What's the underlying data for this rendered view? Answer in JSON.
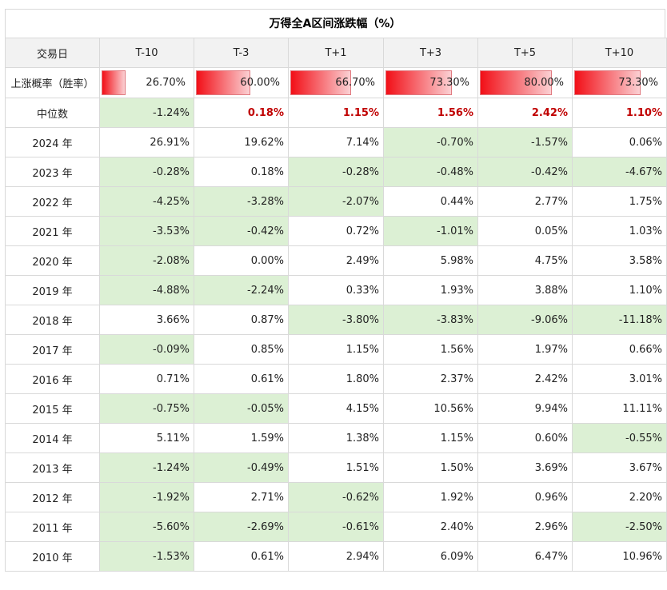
{
  "chart_data": {
    "type": "table",
    "title": "万得全A区间涨跌幅（%）",
    "columns": [
      "交易日",
      "T-10",
      "T-3",
      "T+1",
      "T+3",
      "T+5",
      "T+10"
    ],
    "rows": [
      {
        "label": "上涨概率（胜率）",
        "kind": "bar",
        "values": [
          "26.70%",
          "60.00%",
          "66.70%",
          "73.30%",
          "80.00%",
          "73.30%"
        ],
        "fractions": [
          0.267,
          0.6,
          0.667,
          0.733,
          0.8,
          0.733
        ]
      },
      {
        "label": "中位数",
        "kind": "median",
        "values": [
          "-1.24%",
          "0.18%",
          "1.15%",
          "1.56%",
          "2.42%",
          "1.10%"
        ]
      },
      {
        "label": "2024 年",
        "values": [
          "26.91%",
          "19.62%",
          "7.14%",
          "-0.70%",
          "-1.57%",
          "0.06%"
        ]
      },
      {
        "label": "2023 年",
        "values": [
          "-0.28%",
          "0.18%",
          "-0.28%",
          "-0.48%",
          "-0.42%",
          "-4.67%"
        ]
      },
      {
        "label": "2022 年",
        "values": [
          "-4.25%",
          "-3.28%",
          "-2.07%",
          "0.44%",
          "2.77%",
          "1.75%"
        ]
      },
      {
        "label": "2021 年",
        "values": [
          "-3.53%",
          "-0.42%",
          "0.72%",
          "-1.01%",
          "0.05%",
          "1.03%"
        ]
      },
      {
        "label": "2020 年",
        "values": [
          "-2.08%",
          "0.00%",
          "2.49%",
          "5.98%",
          "4.75%",
          "3.58%"
        ]
      },
      {
        "label": "2019 年",
        "values": [
          "-4.88%",
          "-2.24%",
          "0.33%",
          "1.93%",
          "3.88%",
          "1.10%"
        ]
      },
      {
        "label": "2018 年",
        "values": [
          "3.66%",
          "0.87%",
          "-3.80%",
          "-3.83%",
          "-9.06%",
          "-11.18%"
        ]
      },
      {
        "label": "2017 年",
        "values": [
          "-0.09%",
          "0.85%",
          "1.15%",
          "1.56%",
          "1.97%",
          "0.66%"
        ]
      },
      {
        "label": "2016 年",
        "values": [
          "0.71%",
          "0.61%",
          "1.80%",
          "2.37%",
          "2.42%",
          "3.01%"
        ]
      },
      {
        "label": "2015 年",
        "values": [
          "-0.75%",
          "-0.05%",
          "4.15%",
          "10.56%",
          "9.94%",
          "11.11%"
        ]
      },
      {
        "label": "2014 年",
        "values": [
          "5.11%",
          "1.59%",
          "1.38%",
          "1.15%",
          "0.60%",
          "-0.55%"
        ]
      },
      {
        "label": "2013 年",
        "values": [
          "-1.24%",
          "-0.49%",
          "1.51%",
          "1.50%",
          "3.69%",
          "3.67%"
        ]
      },
      {
        "label": "2012 年",
        "values": [
          "-1.92%",
          "2.71%",
          "-0.62%",
          "1.92%",
          "0.96%",
          "2.20%"
        ]
      },
      {
        "label": "2011 年",
        "values": [
          "-5.60%",
          "-2.69%",
          "-0.61%",
          "2.40%",
          "2.96%",
          "-2.50%"
        ]
      },
      {
        "label": "2010 年",
        "values": [
          "-1.53%",
          "0.61%",
          "2.94%",
          "6.09%",
          "6.47%",
          "10.96%"
        ]
      }
    ],
    "colors": {
      "negative_cell": "#dcf0d4",
      "positive_median_text": "#c00000",
      "bar_start": "#f20f17",
      "bar_end": "#fbd0d3",
      "header_bg": "#f2f2f2"
    }
  }
}
